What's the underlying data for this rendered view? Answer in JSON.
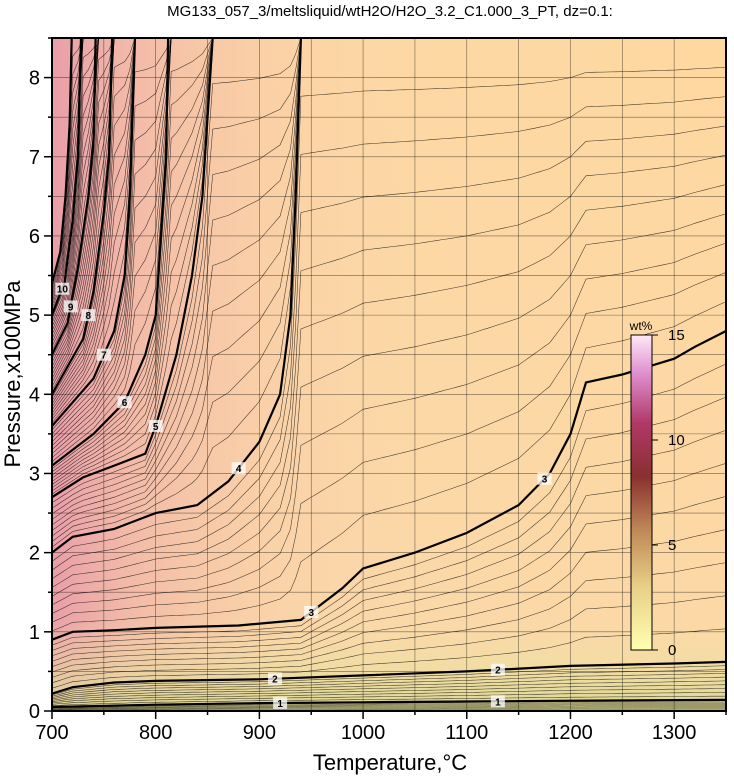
{
  "chart_data": {
    "type": "contour",
    "title": "MG133_057_3/meltsliquid/wtH2O/H2O_3.2_C1.000_3_PT, dz=0.1:",
    "xlabel": "Temperature,°C",
    "ylabel": "Pressure,x100MPa",
    "xlim": [
      700,
      1350
    ],
    "ylim": [
      0,
      8.5
    ],
    "x_ticks": [
      700,
      800,
      900,
      1000,
      1100,
      1200,
      1300
    ],
    "y_ticks": [
      0,
      1,
      2,
      3,
      4,
      5,
      6,
      7,
      8
    ],
    "grid": true,
    "colorbar": {
      "label": "wt%",
      "range": [
        0,
        15
      ],
      "ticks": [
        0,
        5,
        10,
        15
      ],
      "colors": [
        "#ffffb0",
        "#d8a860",
        "#8a3030",
        "#c04878",
        "#ffd8f4"
      ]
    },
    "contour_interval": 0.1,
    "major_contours": [
      {
        "level": 1,
        "label": "1",
        "points": [
          [
            700,
            0.05
          ],
          [
            800,
            0.08
          ],
          [
            900,
            0.1
          ],
          [
            1000,
            0.11
          ],
          [
            1100,
            0.12
          ],
          [
            1200,
            0.13
          ],
          [
            1350,
            0.14
          ]
        ]
      },
      {
        "level": 2,
        "label": "2",
        "points": [
          [
            700,
            0.22
          ],
          [
            720,
            0.3
          ],
          [
            760,
            0.36
          ],
          [
            800,
            0.38
          ],
          [
            900,
            0.4
          ],
          [
            1000,
            0.45
          ],
          [
            1100,
            0.5
          ],
          [
            1200,
            0.57
          ],
          [
            1300,
            0.6
          ],
          [
            1350,
            0.62
          ]
        ]
      },
      {
        "level": 3,
        "label": "3",
        "points": [
          [
            700,
            0.9
          ],
          [
            720,
            1.0
          ],
          [
            760,
            1.02
          ],
          [
            800,
            1.05
          ],
          [
            880,
            1.08
          ],
          [
            940,
            1.15
          ],
          [
            980,
            1.55
          ],
          [
            1000,
            1.8
          ],
          [
            1050,
            2.0
          ],
          [
            1100,
            2.25
          ],
          [
            1150,
            2.6
          ],
          [
            1180,
            3.0
          ],
          [
            1200,
            3.5
          ],
          [
            1215,
            4.15
          ],
          [
            1250,
            4.25
          ],
          [
            1300,
            4.45
          ],
          [
            1320,
            4.6
          ],
          [
            1350,
            4.8
          ]
        ]
      },
      {
        "level": 4,
        "label": "4",
        "points": [
          [
            700,
            2.0
          ],
          [
            720,
            2.2
          ],
          [
            760,
            2.3
          ],
          [
            790,
            2.45
          ],
          [
            800,
            2.5
          ],
          [
            840,
            2.6
          ],
          [
            870,
            2.9
          ],
          [
            900,
            3.4
          ],
          [
            920,
            4.0
          ],
          [
            930,
            5.0
          ],
          [
            935,
            6.5
          ],
          [
            940,
            8.5
          ]
        ]
      },
      {
        "level": 5,
        "label": "5",
        "points": [
          [
            700,
            2.7
          ],
          [
            730,
            2.95
          ],
          [
            760,
            3.1
          ],
          [
            790,
            3.25
          ],
          [
            800,
            3.6
          ],
          [
            820,
            4.5
          ],
          [
            835,
            5.5
          ],
          [
            845,
            6.5
          ],
          [
            855,
            8.5
          ]
        ]
      },
      {
        "level": 6,
        "label": "6",
        "points": [
          [
            700,
            3.1
          ],
          [
            740,
            3.5
          ],
          [
            770,
            3.9
          ],
          [
            790,
            4.5
          ],
          [
            800,
            5.0
          ],
          [
            805,
            6.0
          ],
          [
            810,
            7.0
          ],
          [
            812,
            8.5
          ]
        ]
      },
      {
        "level": 7,
        "label": "7",
        "points": [
          [
            700,
            3.6
          ],
          [
            740,
            4.2
          ],
          [
            760,
            4.8
          ],
          [
            770,
            5.5
          ],
          [
            775,
            6.5
          ],
          [
            780,
            8.5
          ]
        ]
      },
      {
        "level": 8,
        "label": "8",
        "points": [
          [
            700,
            4.0
          ],
          [
            730,
            4.7
          ],
          [
            740,
            5.3
          ],
          [
            750,
            6.3
          ],
          [
            755,
            7.0
          ],
          [
            758,
            8.5
          ]
        ]
      },
      {
        "level": 9,
        "label": "9",
        "points": [
          [
            700,
            4.5
          ],
          [
            715,
            4.9
          ],
          [
            725,
            5.6
          ],
          [
            735,
            6.5
          ],
          [
            740,
            7.2
          ],
          [
            742,
            8.5
          ]
        ]
      },
      {
        "level": 10,
        "label": "10",
        "points": [
          [
            700,
            5.0
          ],
          [
            712,
            5.4
          ],
          [
            720,
            6.2
          ],
          [
            725,
            7.0
          ],
          [
            728,
            8.5
          ]
        ]
      },
      {
        "level": 11,
        "label": "11",
        "points": [
          [
            700,
            5.4
          ],
          [
            708,
            5.8
          ],
          [
            713,
            6.5
          ],
          [
            717,
            7.4
          ],
          [
            719,
            8.5
          ]
        ]
      }
    ]
  }
}
